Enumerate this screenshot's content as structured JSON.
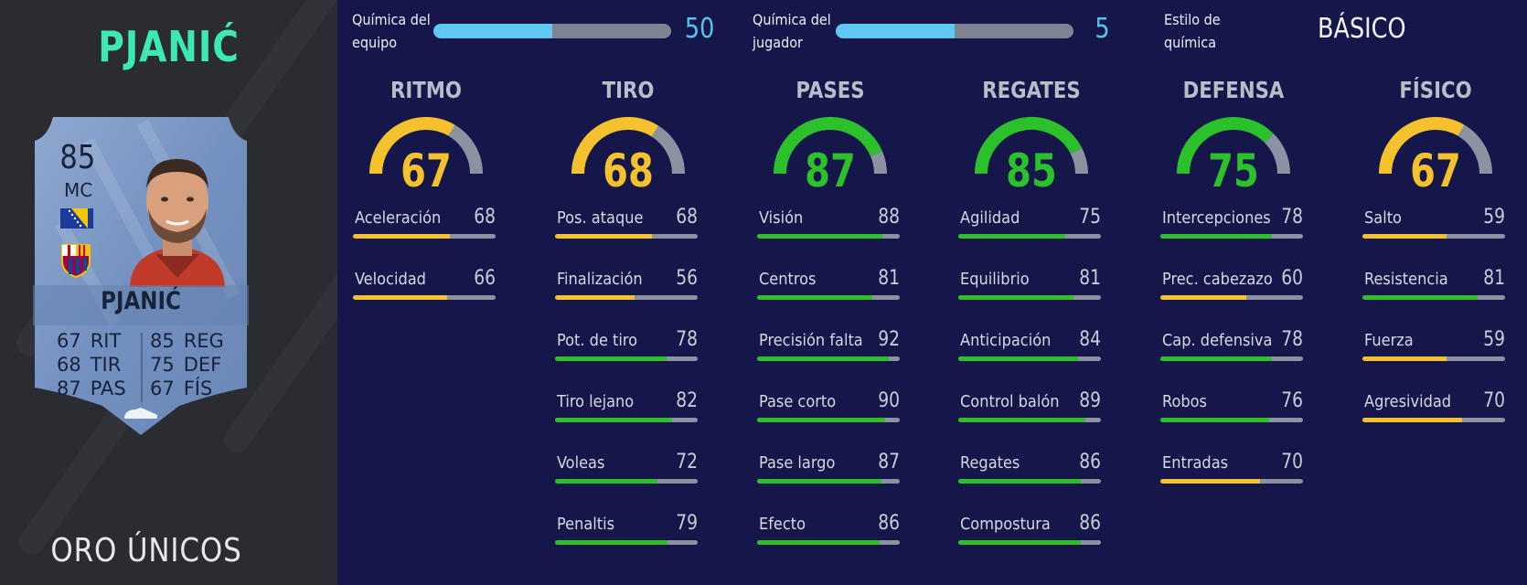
{
  "colors": {
    "green": "#2cc02a",
    "yellow": "#f5c12c",
    "track": "#8b93a3",
    "accent_name": "#3ee8b5",
    "chem_blue": "#5fc8f0"
  },
  "player": {
    "heading_name": "PJANIĆ",
    "card_type": "ORO ÚNICOS"
  },
  "card": {
    "rating": "85",
    "position": "MC",
    "name": "PJANIĆ",
    "left_stats": [
      {
        "value": "67",
        "label": "RIT"
      },
      {
        "value": "68",
        "label": "TIR"
      },
      {
        "value": "87",
        "label": "PAS"
      }
    ],
    "right_stats": [
      {
        "value": "85",
        "label": "REG"
      },
      {
        "value": "75",
        "label": "DEF"
      },
      {
        "value": "67",
        "label": "FÍS"
      }
    ]
  },
  "chemistry": {
    "team": {
      "label_line1": "Química del",
      "label_line2": "equipo",
      "value": "50",
      "fraction": 0.5
    },
    "player": {
      "label_line1": "Química del",
      "label_line2": "jugador",
      "value": "5",
      "fraction": 0.5
    },
    "style": {
      "label_line1": "Estilo de",
      "label_line2": "química",
      "value": "BÁSICO"
    }
  },
  "categories": [
    {
      "title": "RITMO",
      "value": "67",
      "level": 67,
      "color": "yellow",
      "attributes": [
        {
          "name": "Aceleración",
          "value": "68",
          "level": 68,
          "color": "yellow"
        },
        {
          "name": "Velocidad",
          "value": "66",
          "level": 66,
          "color": "yellow"
        }
      ]
    },
    {
      "title": "TIRO",
      "value": "68",
      "level": 68,
      "color": "yellow",
      "attributes": [
        {
          "name": "Pos. ataque",
          "value": "68",
          "level": 68,
          "color": "yellow"
        },
        {
          "name": "Finalización",
          "value": "56",
          "level": 56,
          "color": "yellow"
        },
        {
          "name": "Pot. de tiro",
          "value": "78",
          "level": 78,
          "color": "green"
        },
        {
          "name": "Tiro lejano",
          "value": "82",
          "level": 82,
          "color": "green"
        },
        {
          "name": "Voleas",
          "value": "72",
          "level": 72,
          "color": "green"
        },
        {
          "name": "Penaltis",
          "value": "79",
          "level": 79,
          "color": "green"
        }
      ]
    },
    {
      "title": "PASES",
      "value": "87",
      "level": 87,
      "color": "green",
      "attributes": [
        {
          "name": "Visión",
          "value": "88",
          "level": 88,
          "color": "green"
        },
        {
          "name": "Centros",
          "value": "81",
          "level": 81,
          "color": "green"
        },
        {
          "name": "Precisión falta",
          "value": "92",
          "level": 92,
          "color": "green"
        },
        {
          "name": "Pase corto",
          "value": "90",
          "level": 90,
          "color": "green"
        },
        {
          "name": "Pase largo",
          "value": "87",
          "level": 87,
          "color": "green"
        },
        {
          "name": "Efecto",
          "value": "86",
          "level": 86,
          "color": "green"
        }
      ]
    },
    {
      "title": "REGATES",
      "value": "85",
      "level": 85,
      "color": "green",
      "attributes": [
        {
          "name": "Agilidad",
          "value": "75",
          "level": 75,
          "color": "green"
        },
        {
          "name": "Equilibrio",
          "value": "81",
          "level": 81,
          "color": "green"
        },
        {
          "name": "Anticipación",
          "value": "84",
          "level": 84,
          "color": "green"
        },
        {
          "name": "Control balón",
          "value": "89",
          "level": 89,
          "color": "green"
        },
        {
          "name": "Regates",
          "value": "86",
          "level": 86,
          "color": "green"
        },
        {
          "name": "Compostura",
          "value": "86",
          "level": 86,
          "color": "green"
        }
      ]
    },
    {
      "title": "DEFENSA",
      "value": "75",
      "level": 75,
      "color": "green",
      "attributes": [
        {
          "name": "Intercepciones",
          "value": "78",
          "level": 78,
          "color": "green"
        },
        {
          "name": "Prec. cabezazo",
          "value": "60",
          "level": 60,
          "color": "yellow"
        },
        {
          "name": "Cap. defensiva",
          "value": "78",
          "level": 78,
          "color": "green"
        },
        {
          "name": "Robos",
          "value": "76",
          "level": 76,
          "color": "green"
        },
        {
          "name": "Entradas",
          "value": "70",
          "level": 70,
          "color": "yellow"
        }
      ]
    },
    {
      "title": "FÍSICO",
      "value": "67",
      "level": 67,
      "color": "yellow",
      "attributes": [
        {
          "name": "Salto",
          "value": "59",
          "level": 59,
          "color": "yellow"
        },
        {
          "name": "Resistencia",
          "value": "81",
          "level": 81,
          "color": "green"
        },
        {
          "name": "Fuerza",
          "value": "59",
          "level": 59,
          "color": "yellow"
        },
        {
          "name": "Agresividad",
          "value": "70",
          "level": 70,
          "color": "yellow"
        }
      ]
    }
  ]
}
